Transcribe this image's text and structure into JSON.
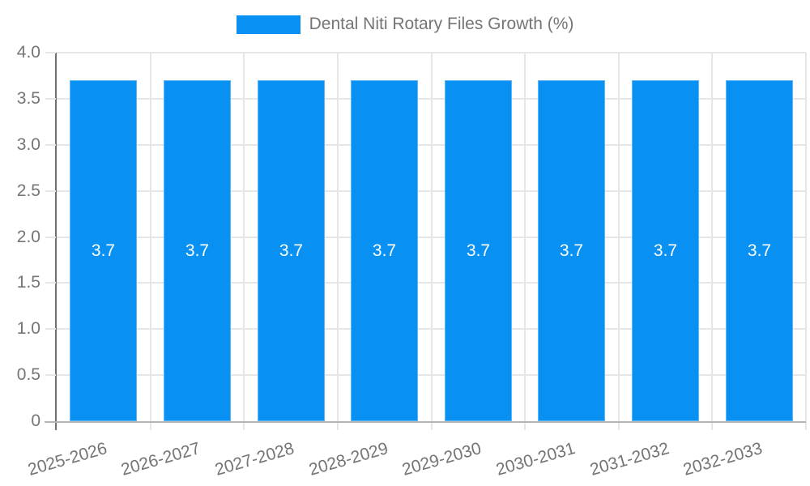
{
  "legend": {
    "label": "Dental Niti Rotary Files Growth (%)"
  },
  "chart_data": {
    "type": "bar",
    "title": "Dental Niti Rotary Files Growth (%)",
    "categories": [
      "2025-2026",
      "2026-2027",
      "2027-2028",
      "2028-2029",
      "2029-2030",
      "2030-2031",
      "2031-2032",
      "2032-2033"
    ],
    "series": [
      {
        "name": "Dental Niti Rotary Files Growth (%)",
        "values": [
          3.7,
          3.7,
          3.7,
          3.7,
          3.7,
          3.7,
          3.7,
          3.7
        ]
      }
    ],
    "bar_value_labels": [
      "3.7",
      "3.7",
      "3.7",
      "3.7",
      "3.7",
      "3.7",
      "3.7",
      "3.7"
    ],
    "xlabel": "",
    "ylabel": "",
    "ylim": [
      0,
      4
    ],
    "ytick_step": 0.5,
    "ytick_labels": [
      "4.0",
      "3.5",
      "3.0",
      "2.5",
      "2.0",
      "1.5",
      "1.0",
      "0.5",
      "0"
    ],
    "grid": true,
    "legend_position": "top",
    "x_tick_label_rotation_deg": -16,
    "colors": {
      "bar": "#0891f3",
      "bar_label": "#ffffff",
      "axis_text": "#757575",
      "gridline": "#e6e6e6",
      "y_axis_line": "#707070",
      "x_axis_line": "#b5b5b5",
      "background": "#ffffff"
    }
  }
}
